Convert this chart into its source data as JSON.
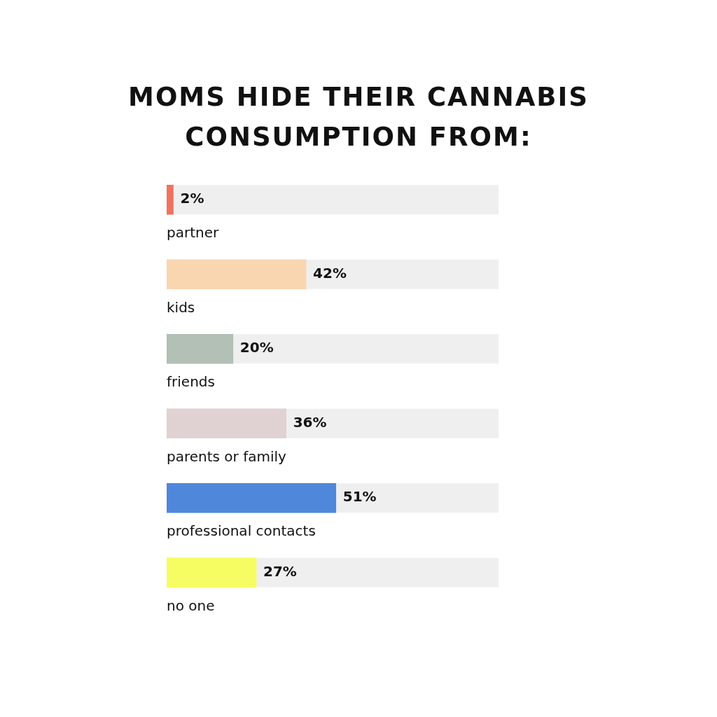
{
  "chart_data": {
    "type": "bar",
    "orientation": "horizontal",
    "title": "MOMS HIDE THEIR CANNABIS CONSUMPTION FROM:",
    "categories": [
      "partner",
      "kids",
      "friends",
      "parents or family",
      "professional contacts",
      "no one"
    ],
    "values": [
      2,
      42,
      20,
      36,
      51,
      27
    ],
    "colors": [
      "#ee7360",
      "#f9d5b0",
      "#b2c0b5",
      "#e0d2d2",
      "#4f87db",
      "#f6fd62"
    ],
    "value_labels": [
      "2%",
      "42%",
      "20%",
      "36%",
      "51%",
      "27%"
    ],
    "xlim": [
      0,
      100
    ],
    "tick_labels": false
  }
}
